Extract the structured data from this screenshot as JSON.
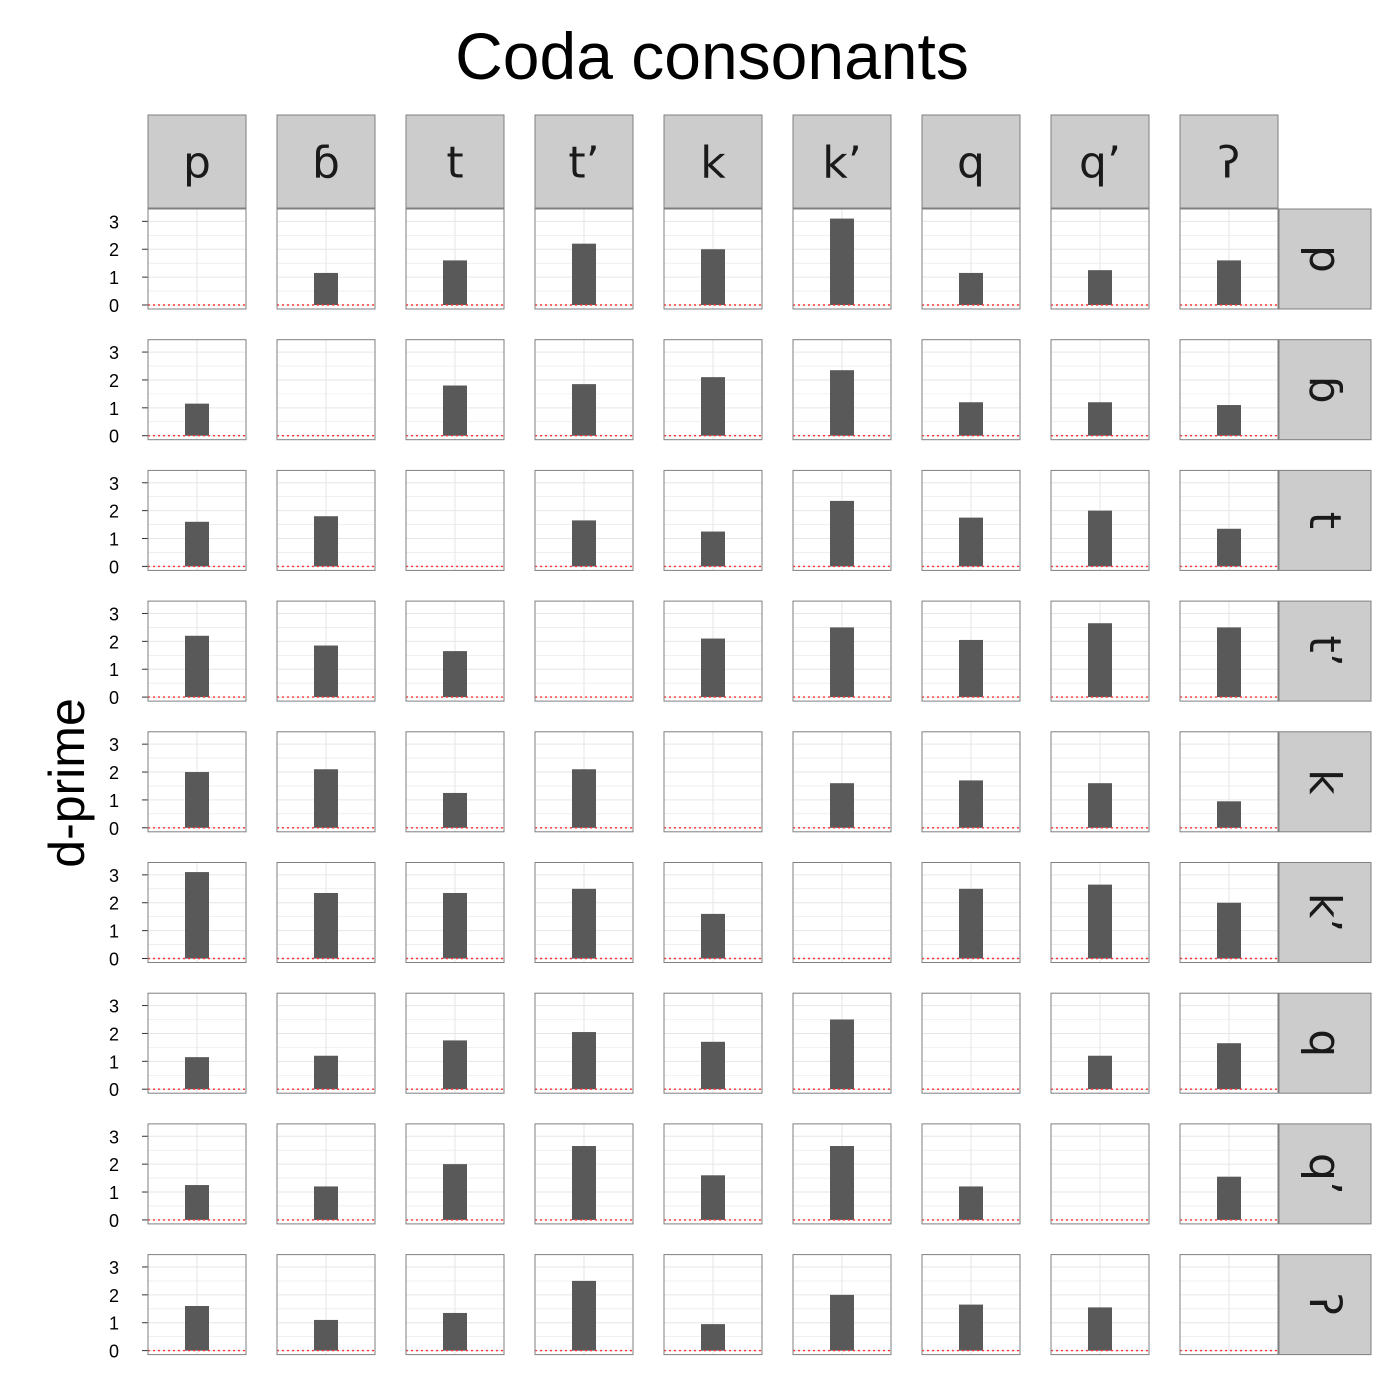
{
  "chart_data": {
    "type": "bar",
    "title": "Coda consonants",
    "xlabel": "",
    "ylabel": "d-prime",
    "ylim": [
      0,
      3.3
    ],
    "yticks": [
      "0",
      "1",
      "2",
      "3"
    ],
    "reference_line": 0,
    "colors": {
      "bar": "#595959",
      "strip": "#cccccc",
      "reference": "#ff3333",
      "grid": "#e6e6e6",
      "panel_border": "#7f7f7f"
    },
    "columns": [
      "p",
      "ɓ",
      "t",
      "tʼ",
      "k",
      "kʼ",
      "q",
      "qʼ",
      "ʔ"
    ],
    "rows": [
      "p",
      "ɓ",
      "t",
      "tʼ",
      "k",
      "kʼ",
      "q",
      "qʼ",
      "ʔ"
    ],
    "values": [
      [
        null,
        1.15,
        1.6,
        2.2,
        2.0,
        3.1,
        1.15,
        1.25,
        1.6
      ],
      [
        1.15,
        null,
        1.8,
        1.85,
        2.1,
        2.35,
        1.2,
        1.2,
        1.1
      ],
      [
        1.6,
        1.8,
        null,
        1.65,
        1.25,
        2.35,
        1.75,
        2.0,
        1.35
      ],
      [
        2.2,
        1.85,
        1.65,
        null,
        2.1,
        2.5,
        2.05,
        2.65,
        2.5
      ],
      [
        2.0,
        2.1,
        1.25,
        2.1,
        null,
        1.6,
        1.7,
        1.6,
        0.95
      ],
      [
        3.1,
        2.35,
        2.35,
        2.5,
        1.6,
        null,
        2.5,
        2.65,
        2.0
      ],
      [
        1.15,
        1.2,
        1.75,
        2.05,
        1.7,
        2.5,
        null,
        1.2,
        1.65
      ],
      [
        1.25,
        1.2,
        2.0,
        2.65,
        1.6,
        2.65,
        1.2,
        null,
        1.55
      ],
      [
        1.6,
        1.1,
        1.35,
        2.5,
        0.95,
        2.0,
        1.65,
        1.55,
        null
      ]
    ]
  }
}
